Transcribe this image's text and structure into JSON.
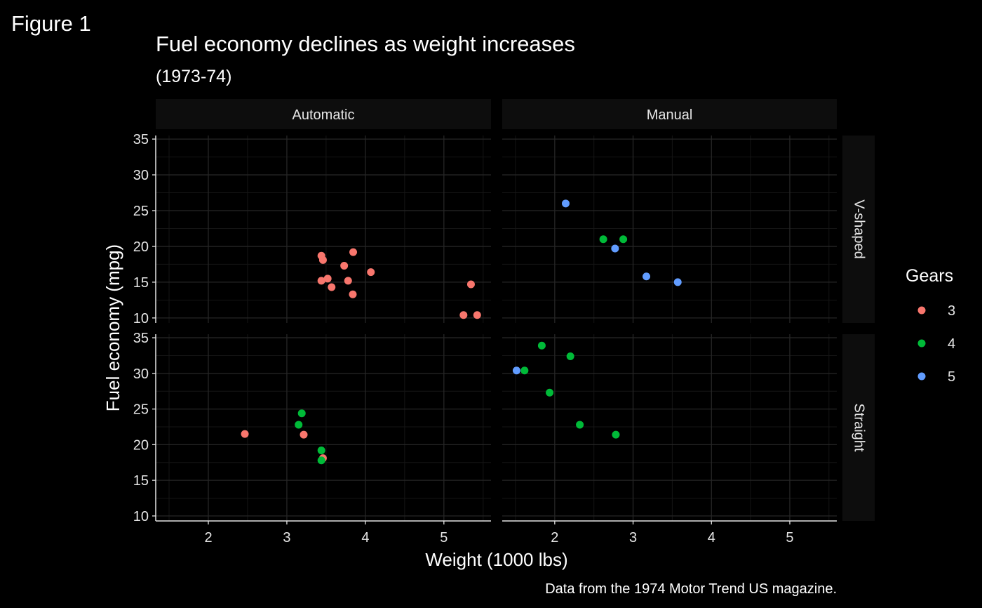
{
  "figure_label": "Figure 1",
  "chart_data": {
    "type": "scatter",
    "title": "Fuel economy declines as weight increases",
    "subtitle": "(1973-74)",
    "xlabel": "Weight (1000 lbs)",
    "ylabel": "Fuel economy (mpg)",
    "caption": "Data from the 1974 Motor Trend US magazine.",
    "xlim": [
      1.33,
      5.6
    ],
    "ylim": [
      9.3,
      35.5
    ],
    "x_ticks": [
      2,
      3,
      4,
      5
    ],
    "y_ticks": [
      10,
      15,
      20,
      25,
      30,
      35
    ],
    "grid": true,
    "legend_position": "right",
    "legend": {
      "title": "Gears",
      "items": [
        {
          "label": "3",
          "color": "#F8766D"
        },
        {
          "label": "4",
          "color": "#00BA38"
        },
        {
          "label": "5",
          "color": "#619CFF"
        }
      ]
    },
    "colors": {
      "background": "#000000",
      "strip_fill": "#0d0d0d",
      "grid": "#262626",
      "text": "#e6e6e6",
      "axis": "#e6e6e6"
    },
    "facet_columns": [
      "Automatic",
      "Manual"
    ],
    "facet_rows": [
      "V-shaped",
      "Straight"
    ],
    "panels": [
      {
        "col": "Automatic",
        "row": "V-shaped",
        "points": [
          {
            "x": 3.44,
            "y": 18.7,
            "gear": "3"
          },
          {
            "x": 3.46,
            "y": 18.1,
            "gear": "3"
          },
          {
            "x": 3.57,
            "y": 14.3,
            "gear": "3"
          },
          {
            "x": 3.44,
            "y": 15.2,
            "gear": "3"
          },
          {
            "x": 3.52,
            "y": 15.5,
            "gear": "3"
          },
          {
            "x": 4.07,
            "y": 16.4,
            "gear": "3"
          },
          {
            "x": 3.73,
            "y": 17.3,
            "gear": "3"
          },
          {
            "x": 3.78,
            "y": 15.2,
            "gear": "3"
          },
          {
            "x": 3.84,
            "y": 13.3,
            "gear": "3"
          },
          {
            "x": 3.845,
            "y": 19.2,
            "gear": "3"
          },
          {
            "x": 5.25,
            "y": 10.4,
            "gear": "3"
          },
          {
            "x": 5.424,
            "y": 10.4,
            "gear": "3"
          },
          {
            "x": 5.345,
            "y": 14.7,
            "gear": "3"
          }
        ]
      },
      {
        "col": "Manual",
        "row": "V-shaped",
        "points": [
          {
            "x": 2.62,
            "y": 21.0,
            "gear": "4"
          },
          {
            "x": 2.875,
            "y": 21.0,
            "gear": "4"
          },
          {
            "x": 2.14,
            "y": 26.0,
            "gear": "5"
          },
          {
            "x": 3.17,
            "y": 15.8,
            "gear": "5"
          },
          {
            "x": 2.77,
            "y": 19.7,
            "gear": "5"
          },
          {
            "x": 3.57,
            "y": 15.0,
            "gear": "5"
          }
        ]
      },
      {
        "col": "Automatic",
        "row": "Straight",
        "points": [
          {
            "x": 3.215,
            "y": 21.4,
            "gear": "3"
          },
          {
            "x": 3.46,
            "y": 18.1,
            "gear": "3"
          },
          {
            "x": 2.465,
            "y": 21.5,
            "gear": "3"
          },
          {
            "x": 3.19,
            "y": 24.4,
            "gear": "4"
          },
          {
            "x": 3.15,
            "y": 22.8,
            "gear": "4"
          },
          {
            "x": 3.44,
            "y": 19.2,
            "gear": "4"
          },
          {
            "x": 3.44,
            "y": 17.8,
            "gear": "4"
          }
        ]
      },
      {
        "col": "Manual",
        "row": "Straight",
        "points": [
          {
            "x": 2.32,
            "y": 22.8,
            "gear": "4"
          },
          {
            "x": 2.2,
            "y": 32.4,
            "gear": "4"
          },
          {
            "x": 1.615,
            "y": 30.4,
            "gear": "4"
          },
          {
            "x": 1.835,
            "y": 33.9,
            "gear": "4"
          },
          {
            "x": 1.935,
            "y": 27.3,
            "gear": "4"
          },
          {
            "x": 2.78,
            "y": 21.4,
            "gear": "4"
          },
          {
            "x": 1.513,
            "y": 30.4,
            "gear": "5"
          }
        ]
      }
    ]
  }
}
